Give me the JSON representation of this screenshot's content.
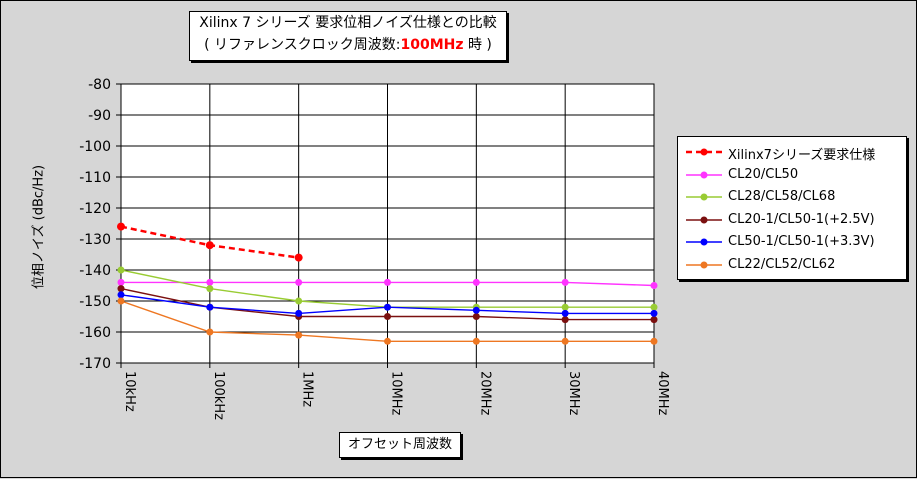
{
  "chart_data": {
    "type": "line",
    "title_line1": "Xilinx 7 シリーズ 要求位相ノイズ仕様との比較",
    "title_line2_pre": "( リファレンスクロック周波数:",
    "title_line2_highlight": "100MHz",
    "title_line2_post": "時 )",
    "xlabel": "オフセット周波数",
    "ylabel": "位相ノイズ (dBc/Hz)",
    "categories": [
      "10kHz",
      "100kHz",
      "1MHz",
      "10MHz",
      "20MHz",
      "30MHz",
      "40MHz"
    ],
    "ylim": [
      -170,
      -80
    ],
    "yticks": [
      -80,
      -90,
      -100,
      -110,
      -120,
      -130,
      -140,
      -150,
      -160,
      -170
    ],
    "grid": true,
    "legend_position": "right",
    "series": [
      {
        "name": "Xilinx7シリーズ要求仕様",
        "color": "#ff0000",
        "dashed": true,
        "values": [
          -126,
          -132,
          -136,
          null,
          null,
          null,
          null
        ]
      },
      {
        "name": "CL20/CL50",
        "color": "#ff33ff",
        "dashed": false,
        "values": [
          -144,
          -144,
          -144,
          -144,
          -144,
          -144,
          -145
        ]
      },
      {
        "name": "CL28/CL58/CL68",
        "color": "#99cc33",
        "dashed": false,
        "values": [
          -140,
          -146,
          -150,
          -152,
          -152,
          -152,
          -152
        ]
      },
      {
        "name": "CL20-1/CL50-1(+2.5V)",
        "color": "#7b1010",
        "dashed": false,
        "values": [
          -146,
          -152,
          -155,
          -155,
          -155,
          -156,
          -156
        ]
      },
      {
        "name": "CL50-1/CL50-1(+3.3V)",
        "color": "#0000ff",
        "dashed": false,
        "values": [
          -148,
          -152,
          -154,
          -152,
          -153,
          -154,
          -154
        ]
      },
      {
        "name": "CL22/CL52/CL62",
        "color": "#ee7722",
        "dashed": false,
        "values": [
          -150,
          -160,
          -161,
          -163,
          -163,
          -163,
          -163
        ]
      }
    ]
  }
}
